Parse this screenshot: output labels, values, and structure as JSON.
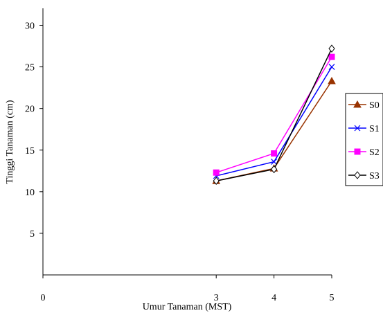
{
  "chart_data": {
    "type": "line",
    "title": "",
    "xlabel": "Umur Tanaman (MST)",
    "ylabel": "Tinggi Tanaman (cm)",
    "x": [
      3,
      4,
      5
    ],
    "xticks": [
      "0",
      "3",
      "4",
      "5"
    ],
    "yticks": [
      "5",
      "10",
      "15",
      "20",
      "25",
      "30"
    ],
    "xlim": [
      0,
      5
    ],
    "ylim": [
      0,
      30
    ],
    "grid": false,
    "legend_position": "right",
    "series": [
      {
        "name": "S0",
        "values": [
          11.3,
          12.8,
          23.3
        ],
        "color": "#993300",
        "marker": "triangle"
      },
      {
        "name": "S1",
        "values": [
          11.9,
          13.6,
          25.0
        ],
        "color": "#0000ff",
        "marker": "x"
      },
      {
        "name": "S2",
        "values": [
          12.3,
          14.6,
          26.2
        ],
        "color": "#ff00ff",
        "marker": "square"
      },
      {
        "name": "S3",
        "values": [
          11.3,
          12.7,
          27.2
        ],
        "color": "#000000",
        "marker": "diamond"
      }
    ]
  }
}
